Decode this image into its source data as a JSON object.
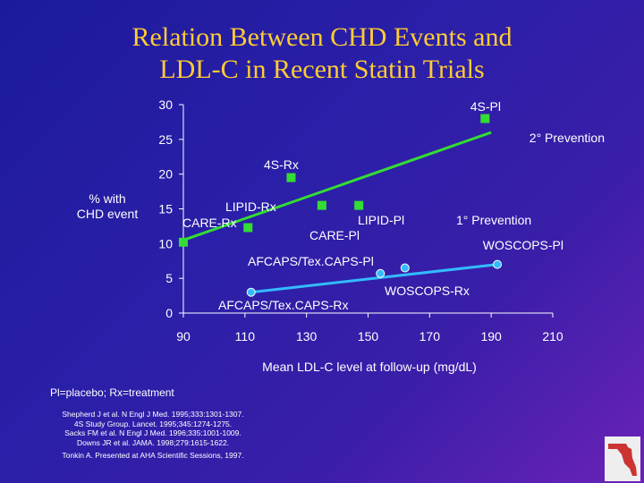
{
  "header": {
    "title_line1": "Relation Between CHD Events and",
    "title_line2": "LDL-C in Recent Statin Trials"
  },
  "chart_data": {
    "type": "scatter",
    "title": "Relation Between CHD Events and LDL-C in Recent Statin Trials",
    "xlabel": "Mean LDL-C level at follow-up (mg/dL)",
    "ylabel": "% with CHD event",
    "xlim": [
      90,
      210
    ],
    "ylim": [
      0,
      30
    ],
    "xticks": [
      90,
      110,
      130,
      150,
      170,
      190,
      210
    ],
    "yticks": [
      0,
      5,
      10,
      15,
      20,
      25,
      30
    ],
    "series": [
      {
        "name": "2° Prevention",
        "color": "#33dd33",
        "marker": "square",
        "points": [
          {
            "label": "4S-Rx",
            "x": 125,
            "y": 19.5
          },
          {
            "label": "4S-Pl",
            "x": 188,
            "y": 28.0
          },
          {
            "label": "LIPID-Rx",
            "x": 135,
            "y": 15.5
          },
          {
            "label": "LIPID-Pl",
            "x": 147,
            "y": 15.5
          },
          {
            "label": "CARE-Rx",
            "x": 90,
            "y": 10.2
          },
          {
            "label": "CARE-Pl",
            "x": 111,
            "y": 12.3
          }
        ],
        "trend": {
          "x": [
            90,
            190
          ],
          "y": [
            10.5,
            26.0
          ]
        }
      },
      {
        "name": "1° Prevention",
        "color": "#33bbff",
        "marker": "circle",
        "points": [
          {
            "label": "AFCAPS/Tex.CAPS-Rx",
            "x": 112,
            "y": 3.0
          },
          {
            "label": "AFCAPS/Tex.CAPS-Pl",
            "x": 154,
            "y": 5.7
          },
          {
            "label": "WOSCOPS-Rx",
            "x": 162,
            "y": 6.5
          },
          {
            "label": "WOSCOPS-Pl",
            "x": 192,
            "y": 7.0
          }
        ],
        "trend": {
          "x": [
            112,
            192
          ],
          "y": [
            3.0,
            7.0
          ]
        }
      }
    ],
    "annotations": {
      "pt_4s_pl": "4S-Pl",
      "secondary_prevention": "2° Prevention",
      "pt_4s_rx": "4S-Rx",
      "pt_lipid_rx": "LIPID-Rx",
      "pt_care_rx": "CARE-Rx",
      "pt_lipid_pl": "LIPID-Pl",
      "pt_care_pl": "CARE-Pl",
      "primary_prevention": "1° Prevention",
      "pt_woscops_pl": "WOSCOPS-Pl",
      "pt_afcaps_pl": "AFCAPS/Tex.CAPS-Pl",
      "pt_woscops_rx": "WOSCOPS-Rx",
      "pt_afcaps_rx": "AFCAPS/Tex.CAPS-Rx"
    }
  },
  "axes": {
    "ylabel_line1": "% with",
    "ylabel_line2": "CHD event",
    "xlabel": "Mean LDL-C level at follow-up (mg/dL)"
  },
  "footer": {
    "note": "Pl=placebo; Rx=treatment",
    "refs": [
      "Shepherd J et al. N Engl J Med. 1995;333:1301-1307.",
      "4S Study Group. Lancet. 1995;345:1274-1275.",
      "Sacks FM et al. N Engl J Med. 1996;335:1001-1009.",
      "Downs JR et al. JAMA. 1998;279:1615-1622.",
      "Tonkin A. Presented at AHA Scientific Sessions, 1997."
    ]
  }
}
